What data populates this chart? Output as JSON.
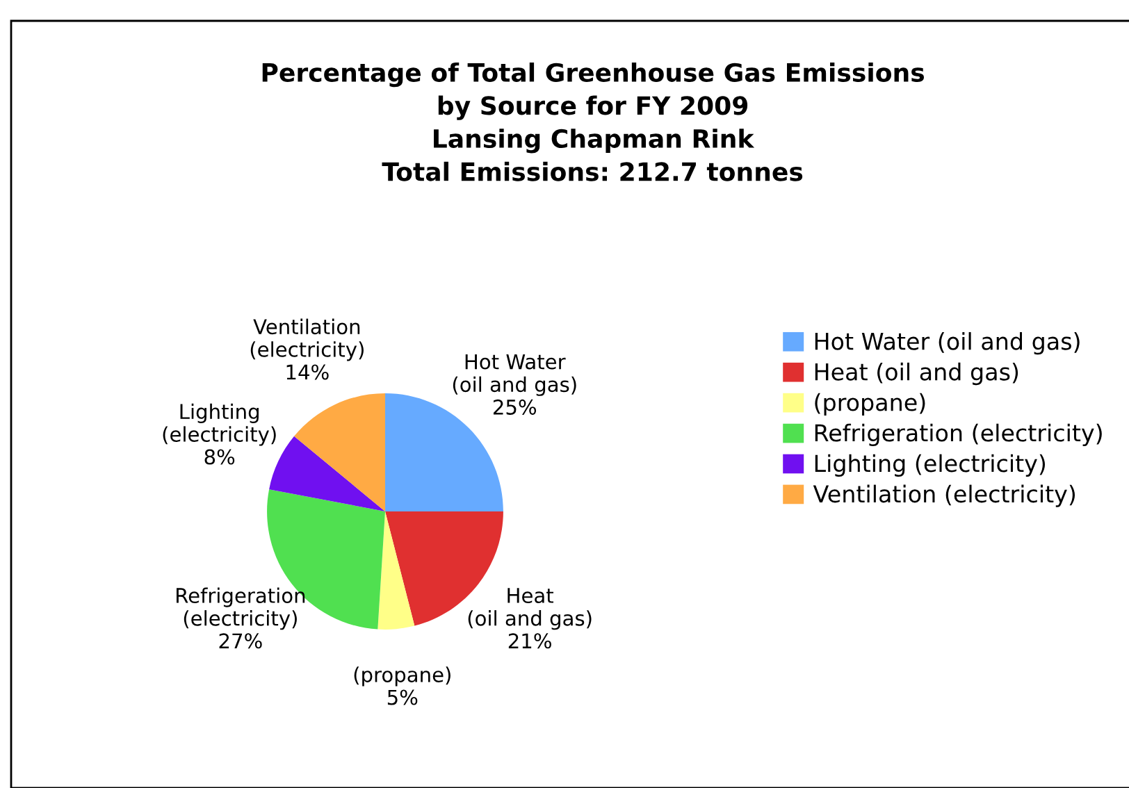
{
  "chart_data": {
    "type": "pie",
    "title": "Percentage of Total Greenhouse Gas Emissions\nby Source for FY 2009\nLansing Chapman Rink\nTotal Emissions: 212.7 tonnes",
    "categories": [
      "Hot Water (oil and gas)",
      "Heat (oil and gas)",
      "(propane)",
      "Refrigeration (electricity)",
      "Lighting (electricity)",
      "Ventilation (electricity)"
    ],
    "values": [
      25,
      21,
      5,
      27,
      8,
      14
    ],
    "colors": [
      "#66aaff",
      "#e03030",
      "#ffff88",
      "#50e050",
      "#7010f0",
      "#ffaa44"
    ],
    "value_labels": [
      "25%",
      "21%",
      "5%",
      "27%",
      "8%",
      "14%"
    ],
    "legend": "right"
  }
}
